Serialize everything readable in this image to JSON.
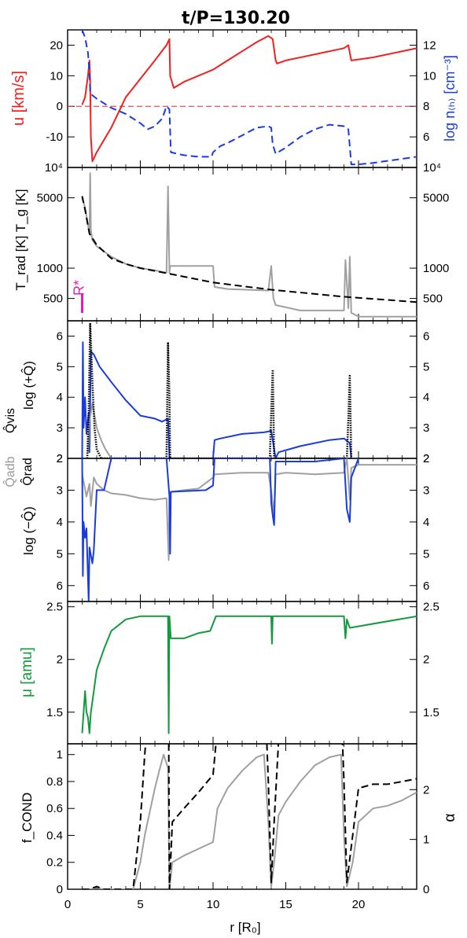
{
  "figure": {
    "title": "t/P=130.20",
    "xlabel": "r [R₀]",
    "xlim": [
      0,
      24
    ],
    "xticks": [
      0,
      5,
      10,
      15,
      20
    ]
  },
  "colors": {
    "red": "#ee2222",
    "blue": "#1a3cdd",
    "gray": "#a0a0a0",
    "black": "#000000",
    "green": "#139a3c",
    "magenta": "#dd22bb"
  },
  "chart_data": [
    {
      "type": "line",
      "panel": "velocity_density",
      "ylabel_left": "u [km/s]",
      "ylabel_right": "log n₍ₕ₎ [cm⁻³]",
      "ylim": [
        -20,
        25
      ],
      "yticks": [
        -10,
        0,
        10,
        20
      ],
      "ylim_right": [
        4,
        13
      ],
      "yticks_right": [
        6,
        8,
        10,
        12
      ],
      "series": [
        {
          "name": "u",
          "color": "red",
          "style": "solid",
          "axis": "left",
          "x": [
            1.0,
            1.2,
            1.4,
            1.5,
            1.55,
            1.6,
            1.7,
            2.0,
            3.0,
            4.0,
            5.0,
            6.0,
            6.8,
            7.0,
            7.05,
            7.3,
            8.0,
            9.0,
            10.0,
            11.0,
            12.0,
            13.0,
            13.8,
            14.1,
            14.3,
            14.4,
            15.0,
            17.0,
            19.0,
            19.3,
            19.5,
            21.0,
            24.0
          ],
          "y": [
            0.5,
            3,
            10,
            15,
            8,
            -10,
            -18,
            -15,
            -7,
            3,
            9,
            15,
            20,
            22,
            10,
            6,
            8,
            10,
            12,
            15,
            18,
            21,
            23,
            22,
            15,
            14,
            15,
            17,
            19,
            20,
            15,
            16,
            19
          ]
        },
        {
          "name": "log n",
          "color": "blue",
          "style": "dashed",
          "axis": "right",
          "x": [
            1.0,
            1.2,
            1.4,
            1.5,
            1.55,
            1.6,
            2.0,
            3.0,
            4.0,
            5.0,
            5.5,
            6.0,
            6.5,
            6.8,
            7.0,
            7.1,
            7.5,
            8.0,
            9.0,
            9.9,
            10.0,
            10.5,
            11.0,
            12.0,
            13.0,
            13.8,
            14.0,
            14.1,
            14.3,
            15.0,
            16.0,
            17.0,
            18.0,
            19.0,
            19.3,
            19.5,
            20.0,
            21.0,
            24.0
          ],
          "y": [
            13,
            12.5,
            11.5,
            10.2,
            9,
            8.8,
            8.5,
            7.9,
            7.5,
            6.9,
            6.5,
            6.7,
            7.2,
            8,
            7.8,
            5,
            4.9,
            4.8,
            4.7,
            4.7,
            5,
            5.4,
            5.6,
            6.1,
            6.6,
            6.7,
            6.6,
            5.5,
            4.9,
            5.3,
            6.0,
            6.5,
            6.8,
            6.7,
            6.5,
            4.2,
            4.2,
            4.3,
            4.7
          ]
        },
        {
          "name": "zero line",
          "color": "red",
          "style": "dashed-thin",
          "axis": "left",
          "x": [
            0,
            24
          ],
          "y": [
            0,
            0
          ]
        }
      ]
    },
    {
      "type": "line",
      "panel": "temperature",
      "ylabel_left": "T_rad [K]  T_g [K]",
      "ylog": true,
      "ylim": [
        300,
        10000
      ],
      "yticks": [
        500,
        1000,
        5000,
        10000
      ],
      "ytick_labels": [
        "500",
        "1000",
        "5000",
        "10⁴"
      ],
      "annotation": "R*",
      "series": [
        {
          "name": "T_g",
          "color": "gray",
          "style": "solid",
          "x": [
            1.0,
            1.2,
            1.4,
            1.5,
            1.55,
            1.6,
            1.7,
            2.0,
            3.0,
            4.0,
            5.0,
            6.0,
            6.8,
            6.9,
            7.0,
            7.05,
            7.1,
            7.15,
            7.3,
            10.0,
            10.1,
            11.0,
            13.8,
            14.0,
            14.1,
            14.15,
            14.3,
            16.0,
            19.0,
            19.1,
            19.3,
            19.4,
            19.5,
            20.0,
            24.0
          ],
          "y": [
            5000,
            4000,
            2700,
            2200,
            8800,
            2400,
            1900,
            1650,
            1300,
            1100,
            1000,
            950,
            900,
            6500,
            900,
            1050,
            1050,
            1050,
            1050,
            1050,
            650,
            620,
            600,
            1050,
            620,
            500,
            430,
            380,
            380,
            1200,
            400,
            1300,
            360,
            330,
            330
          ]
        },
        {
          "name": "T_rad",
          "color": "black",
          "style": "dashed",
          "x": [
            1.0,
            1.2,
            1.5,
            2.0,
            3.0,
            4.0,
            5.0,
            7.0,
            10.0,
            14.0,
            19.0,
            24.0
          ],
          "y": [
            5200,
            3800,
            2200,
            1700,
            1250,
            1100,
            1000,
            880,
            720,
            610,
            520,
            460
          ]
        }
      ]
    },
    {
      "type": "line",
      "panel": "heating_rate",
      "ylabel_left": "log (+Q̂)",
      "legend_labels": [
        "Q̂vis",
        "Q̂adb"
      ],
      "ylim": [
        2,
        6.5
      ],
      "yticks": [
        2,
        3,
        4,
        5,
        6
      ],
      "series": [
        {
          "name": "Q̂vis",
          "color": "blue",
          "style": "solid",
          "x": [
            1.0,
            1.05,
            1.1,
            1.2,
            1.3,
            1.45,
            1.5,
            1.6,
            1.8,
            2.2,
            3.0,
            4.0,
            5.0,
            6.0,
            6.5,
            6.9,
            7.0,
            10.0,
            10.1,
            10.5,
            12.0,
            13.5,
            14.0,
            14.3,
            14.5,
            16.0,
            18.0,
            19.0,
            19.4,
            19.5
          ],
          "y": [
            2,
            5.8,
            3,
            4,
            2.8,
            3.5,
            2.2,
            5.5,
            5.4,
            5,
            4.5,
            3.9,
            3.4,
            3.3,
            3.2,
            3.3,
            2,
            2,
            2.6,
            2.65,
            2.8,
            2.85,
            2.9,
            2,
            2.2,
            2.4,
            2.6,
            2.65,
            2.5,
            2
          ]
        },
        {
          "name": "Q̂adb",
          "color": "gray",
          "style": "solid",
          "x": [
            1.4,
            1.5,
            1.7,
            2.0,
            2.3,
            2.6,
            3.0
          ],
          "y": [
            2.2,
            3.2,
            3.8,
            3.0,
            2.6,
            2.3,
            2.0
          ]
        },
        {
          "name": "Q̂ total",
          "color": "black",
          "style": "dotted",
          "x": [
            1.35,
            1.45,
            1.55,
            1.7,
            1.85,
            2.0,
            2.3,
            6.8,
            6.9,
            7.0,
            7.05,
            13.9,
            14.0,
            14.1,
            14.2,
            19.2,
            19.3,
            19.4,
            19.5
          ],
          "y": [
            2,
            3.5,
            6.4,
            4.5,
            3.0,
            2.3,
            2,
            2,
            5.8,
            4,
            2,
            2,
            3.5,
            4.9,
            2,
            2,
            3.3,
            4.7,
            2
          ]
        }
      ]
    },
    {
      "type": "line",
      "panel": "cooling_rate",
      "ylabel_left": "log (−Q̂)",
      "legend_labels": [
        "Q̂rad"
      ],
      "ylim": [
        2,
        6.5
      ],
      "yticks": [
        2,
        3,
        4,
        5,
        6
      ],
      "y_inverted": true,
      "series": [
        {
          "name": "Q̂rad (gray)",
          "color": "gray",
          "style": "solid",
          "x": [
            1.0,
            1.3,
            1.5,
            1.6,
            1.8,
            2.0,
            2.5,
            3.0,
            4.0,
            5.0,
            6.0,
            6.8,
            6.95,
            7.0,
            7.1,
            8.0,
            9.0,
            10.0,
            10.1,
            12.0,
            13.8,
            14.0,
            14.2,
            14.3,
            15.0,
            17.0,
            19.0,
            19.2,
            19.4,
            19.5,
            20.0,
            24.0
          ],
          "y": [
            2.5,
            3.2,
            2.8,
            3.5,
            2.6,
            2.8,
            3.0,
            3.1,
            3.15,
            3.25,
            3.3,
            3.25,
            5.2,
            3.1,
            3.05,
            3.0,
            2.95,
            2.6,
            2.5,
            2.45,
            2.45,
            3.0,
            3.8,
            2.5,
            2.45,
            2.5,
            2.45,
            2.0,
            3.3,
            2.3,
            2.2,
            2.2
          ]
        },
        {
          "name": "Q̂rad (blue)",
          "color": "blue",
          "style": "solid",
          "x": [
            1.0,
            1.05,
            1.1,
            1.2,
            1.3,
            1.45,
            1.5,
            1.7,
            1.8,
            2.0,
            2.5,
            3.0,
            3.5,
            5.0,
            6.8,
            7.0,
            7.05,
            7.1,
            9.5,
            10.0,
            10.1,
            12.0,
            13.9,
            14.0,
            14.1,
            14.2,
            14.3,
            15.0,
            17.0,
            19.0,
            19.2,
            19.4,
            19.5,
            20.0
          ],
          "y": [
            2,
            5.7,
            4,
            4.5,
            4.2,
            6.5,
            4.8,
            5.3,
            4.9,
            3.0,
            3.0,
            2.0,
            2.0,
            2.0,
            2.0,
            3.2,
            5.0,
            3.05,
            3.0,
            2.85,
            2.0,
            2.0,
            2.0,
            3.4,
            3.8,
            4.1,
            2.1,
            2.1,
            2.1,
            2.0,
            3.6,
            4.0,
            2.6,
            2.0
          ]
        }
      ]
    },
    {
      "type": "line",
      "panel": "mean_molecular_weight",
      "ylabel_left": "μ [amu]",
      "ylim": [
        1.2,
        2.55
      ],
      "yticks": [
        1.5,
        2,
        2.5
      ],
      "series": [
        {
          "name": "μ",
          "color": "green",
          "style": "solid",
          "x": [
            1.0,
            1.2,
            1.3,
            1.4,
            1.5,
            1.6,
            1.7,
            2.0,
            2.5,
            3.0,
            4.0,
            5.0,
            6.0,
            6.9,
            6.95,
            7.0,
            7.1,
            8.0,
            9.0,
            9.8,
            10.2,
            11.0,
            14.0,
            14.05,
            14.1,
            19.0,
            19.1,
            19.2,
            19.4,
            24.0
          ],
          "y": [
            1.3,
            1.7,
            1.5,
            1.45,
            1.3,
            1.5,
            1.6,
            1.9,
            2.1,
            2.27,
            2.38,
            2.41,
            2.41,
            2.41,
            1.3,
            2.41,
            2.2,
            2.2,
            2.25,
            2.27,
            2.41,
            2.41,
            2.41,
            2.15,
            2.41,
            2.41,
            2.2,
            2.38,
            2.3,
            2.41
          ]
        }
      ]
    },
    {
      "type": "line",
      "panel": "condensation",
      "ylabel_left": "f_COND",
      "ylabel_right": "α",
      "ylim": [
        0,
        1.08
      ],
      "yticks": [
        0,
        0.2,
        0.4,
        0.6,
        0.8,
        1
      ],
      "ylim_right": [
        0,
        2.92
      ],
      "yticks_right": [
        0,
        1,
        2
      ],
      "series": [
        {
          "name": "f_COND",
          "color": "gray",
          "style": "solid",
          "x": [
            1.0,
            1.5,
            2.0,
            2.5,
            4.5,
            5.0,
            5.3,
            5.6,
            6.0,
            6.3,
            6.6,
            6.9,
            7.0,
            7.2,
            8.0,
            9.0,
            10.0,
            10.3,
            11.0,
            12.0,
            13.0,
            13.5,
            13.8,
            14.0,
            14.2,
            14.5,
            15.0,
            16.0,
            17.0,
            18.0,
            18.8,
            19.0,
            19.2,
            19.6,
            20.0,
            21.0,
            22.0,
            23.0,
            24.0
          ],
          "y": [
            0,
            0,
            0.01,
            0.0,
            0,
            0.2,
            0.4,
            0.55,
            0.75,
            0.88,
            1.0,
            0.9,
            0,
            0.2,
            0.25,
            0.3,
            0.35,
            0.6,
            0.75,
            0.88,
            0.98,
            1.0,
            0.5,
            0.02,
            0.2,
            0.55,
            0.65,
            0.8,
            0.92,
            0.98,
            1.0,
            0.4,
            0.02,
            0.2,
            0.5,
            0.6,
            0.62,
            0.66,
            0.72
          ]
        },
        {
          "name": "α",
          "color": "black",
          "style": "dashed",
          "x": [
            1.0,
            1.5,
            2.0,
            2.5,
            4.5,
            5.0,
            5.3,
            5.6,
            6.0,
            6.3,
            6.6,
            6.9,
            7.0,
            7.2,
            8.0,
            9.0,
            10.0,
            10.3,
            11.0,
            12.0,
            13.0,
            13.5,
            13.8,
            14.0,
            14.2,
            14.5,
            15.0,
            16.0,
            17.0,
            18.0,
            18.8,
            19.0,
            19.2,
            19.6,
            20.0,
            21.0,
            22.0,
            23.0,
            24.0
          ],
          "y": [
            0,
            0,
            0.02,
            0.0,
            0,
            0.5,
            1.0,
            1.4,
            1.9,
            2.15,
            2.3,
            2.2,
            0,
            0.5,
            0.6,
            0.72,
            0.85,
            1.2,
            1.4,
            1.55,
            1.62,
            1.62,
            0.8,
            0.05,
            0.5,
            1.1,
            1.25,
            1.32,
            1.35,
            1.38,
            1.38,
            0.8,
            0.05,
            0.4,
            0.75,
            0.78,
            0.78,
            0.8,
            0.82
          ]
        }
      ]
    }
  ]
}
